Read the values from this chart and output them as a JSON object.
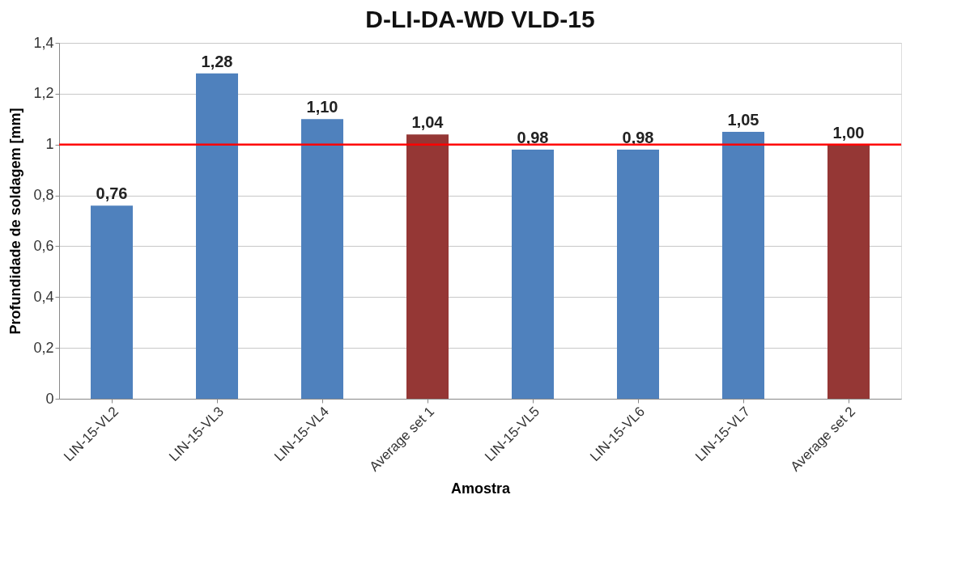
{
  "chart_data": {
    "type": "bar",
    "title": "D-LI-DA-WD VLD-15",
    "xlabel": "Amostra",
    "ylabel": "Profundidade de soldagem [mm]",
    "categories": [
      "LIN-15-VL2",
      "LIN-15-VL3",
      "LIN-15-VL4",
      "Average set 1",
      "LIN-15-VL5",
      "LIN-15-VL6",
      "LIN-15-VL7",
      "Average set 2"
    ],
    "values": [
      0.76,
      1.28,
      1.1,
      1.04,
      0.98,
      0.98,
      1.05,
      1.0
    ],
    "colors": [
      "#4f81bd",
      "#4f81bd",
      "#4f81bd",
      "#953735",
      "#4f81bd",
      "#4f81bd",
      "#4f81bd",
      "#953735"
    ],
    "value_labels": [
      "0,76",
      "1,28",
      "1,10",
      "1,04",
      "0,98",
      "0,98",
      "1,05",
      "1,00"
    ],
    "ylim": [
      0,
      1.4
    ],
    "yticks": [
      0,
      {
        "value": 0.2,
        "label": "0,2"
      },
      {
        "value": 0.4,
        "label": "0,4"
      },
      {
        "value": 0.6,
        "label": "0,6"
      },
      {
        "value": 0.8,
        "label": "0,8"
      },
      1,
      {
        "value": 1.2,
        "label": "1,2"
      },
      {
        "value": 1.4,
        "label": "1,4"
      }
    ],
    "ref_lines": [
      {
        "axis": "y",
        "value": 1,
        "color": "#ff0000"
      }
    ],
    "grid": "y"
  }
}
